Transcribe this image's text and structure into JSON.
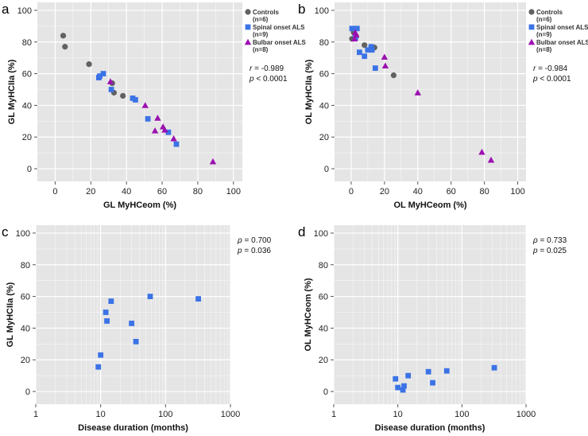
{
  "colors": {
    "controls": "#616161",
    "spinal": "#3b73e6",
    "bulbar": "#9b11b0",
    "plot_bg": "#e5e5e5",
    "grid": "#ffffff"
  },
  "chart_data": [
    {
      "panel": "a",
      "type": "scatter",
      "xlabel": "GL MyHCeom (%)",
      "ylabel": "GL MyHCIIa (%)",
      "xscale": "linear",
      "xlim": [
        -10,
        105
      ],
      "ylim": [
        -8,
        105
      ],
      "xticks": [
        0,
        20,
        40,
        60,
        80,
        100
      ],
      "xtick_labels": [
        "0",
        "20",
        "40",
        "60",
        "80",
        "100"
      ],
      "yticks": [
        0,
        20,
        40,
        60,
        80,
        100
      ],
      "ytick_labels": [
        "0",
        "20",
        "40",
        "60",
        "80",
        "100"
      ],
      "legend": [
        {
          "label": "Controls",
          "sub": "(n=6)",
          "marker": "circle",
          "group": "controls"
        },
        {
          "label": "Spinal onset ALS",
          "sub": "(n=9)",
          "marker": "square",
          "group": "spinal"
        },
        {
          "label": "Bulbar onset ALS",
          "sub": "(n=8)",
          "marker": "triangle",
          "group": "bulbar"
        }
      ],
      "stats": [
        {
          "sym": "r",
          "text": " = -0.989"
        },
        {
          "sym": "p",
          "text": " < 0.0001"
        }
      ],
      "series": [
        {
          "name": "Controls",
          "group": "controls",
          "marker": "circle",
          "points": [
            [
              4.5,
              84
            ],
            [
              5.5,
              77
            ],
            [
              19,
              66
            ],
            [
              33,
              48
            ],
            [
              38,
              46
            ],
            [
              32,
              54
            ]
          ]
        },
        {
          "name": "Spinal onset ALS",
          "group": "spinal",
          "marker": "square",
          "points": [
            [
              24.5,
              57.5
            ],
            [
              25,
              58.5
            ],
            [
              27,
              60
            ],
            [
              31.5,
              50
            ],
            [
              43.5,
              44.5
            ],
            [
              45,
              43.5
            ],
            [
              52,
              31.5
            ],
            [
              63.5,
              23
            ],
            [
              68,
              15.5
            ]
          ]
        },
        {
          "name": "Bulbar onset ALS",
          "group": "bulbar",
          "marker": "triangle",
          "points": [
            [
              31,
              55
            ],
            [
              50.5,
              40
            ],
            [
              56,
              24
            ],
            [
              57.5,
              32
            ],
            [
              60.5,
              26.5
            ],
            [
              61.5,
              24.5
            ],
            [
              66.5,
              19
            ],
            [
              88.5,
              4.5
            ]
          ]
        }
      ]
    },
    {
      "panel": "b",
      "type": "scatter",
      "xlabel": "OL MyHCeom (%)",
      "ylabel": "OL MyHCIIa (%)",
      "xscale": "linear",
      "xlim": [
        -10,
        105
      ],
      "ylim": [
        -8,
        105
      ],
      "xticks": [
        0,
        20,
        40,
        60,
        80,
        100
      ],
      "xtick_labels": [
        "0",
        "20",
        "40",
        "60",
        "80",
        "100"
      ],
      "yticks": [
        0,
        20,
        40,
        60,
        80,
        100
      ],
      "ytick_labels": [
        "0",
        "20",
        "40",
        "60",
        "80",
        "100"
      ],
      "legend": [
        {
          "label": "Controls",
          "sub": "(n=6)",
          "marker": "circle",
          "group": "controls"
        },
        {
          "label": "Spinal onset ALS",
          "sub": "(n=9)",
          "marker": "square",
          "group": "spinal"
        },
        {
          "label": "Bulbar onset ALS",
          "sub": "(n=8)",
          "marker": "triangle",
          "group": "bulbar"
        }
      ],
      "stats": [
        {
          "sym": "r",
          "text": " = -0.984"
        },
        {
          "sym": "p",
          "text": " < 0.0001"
        }
      ],
      "series": [
        {
          "name": "Controls",
          "group": "controls",
          "marker": "circle",
          "points": [
            [
              0.5,
              82
            ],
            [
              1.5,
              86
            ],
            [
              3,
              83.5
            ],
            [
              8,
              78
            ],
            [
              14,
              76.5
            ],
            [
              25.5,
              59
            ]
          ]
        },
        {
          "name": "Spinal onset ALS",
          "group": "spinal",
          "marker": "square",
          "points": [
            [
              0.5,
              88.5
            ],
            [
              3.5,
              88.5
            ],
            [
              5,
              73.5
            ],
            [
              8,
              71
            ],
            [
              10,
              75
            ],
            [
              12,
              77
            ],
            [
              12.5,
              75
            ],
            [
              14.5,
              63.5
            ],
            [
              2.5,
              82.5
            ]
          ]
        },
        {
          "name": "Bulbar onset ALS",
          "group": "bulbar",
          "marker": "triangle",
          "points": [
            [
              2,
              82
            ],
            [
              3,
              84.5
            ],
            [
              20,
              70.5
            ],
            [
              20.5,
              65
            ],
            [
              40,
              48
            ],
            [
              78.5,
              10.5
            ],
            [
              84,
              5.5
            ],
            [
              2.5,
              86
            ]
          ]
        }
      ]
    },
    {
      "panel": "c",
      "type": "scatter",
      "xlabel": "Disease duration (months)",
      "ylabel": "GL MyHCIIa (%)",
      "xscale": "log",
      "xlim": [
        1,
        1000
      ],
      "ylim": [
        -8,
        105
      ],
      "xticks": [
        1,
        10,
        100,
        1000
      ],
      "xtick_labels": [
        "1",
        "10",
        "100",
        "1000"
      ],
      "yticks": [
        0,
        20,
        40,
        60,
        80,
        100
      ],
      "ytick_labels": [
        "0",
        "20",
        "40",
        "60",
        "80",
        "100"
      ],
      "legend": [],
      "stats": [
        {
          "sym": "ρ",
          "text": " = 0.700"
        },
        {
          "sym": "p",
          "text": " = 0.036"
        }
      ],
      "series": [
        {
          "name": "Spinal onset ALS",
          "group": "spinal",
          "marker": "square",
          "points": [
            [
              9.2,
              15.5
            ],
            [
              10,
              23
            ],
            [
              12,
              50
            ],
            [
              12.5,
              44.5
            ],
            [
              14.5,
              57
            ],
            [
              30,
              43
            ],
            [
              35,
              31.5
            ],
            [
              58,
              60
            ],
            [
              320,
              58.5
            ]
          ]
        }
      ]
    },
    {
      "panel": "d",
      "type": "scatter",
      "xlabel": "Disease duration (months)",
      "ylabel": "OL MyHCeom (%)",
      "xscale": "log",
      "xlim": [
        1,
        1000
      ],
      "ylim": [
        -8,
        105
      ],
      "xticks": [
        1,
        10,
        100,
        1000
      ],
      "xtick_labels": [
        "1",
        "10",
        "100",
        "1000"
      ],
      "yticks": [
        0,
        20,
        40,
        60,
        80,
        100
      ],
      "ytick_labels": [
        "0",
        "20",
        "40",
        "60",
        "80",
        "100"
      ],
      "legend": [],
      "stats": [
        {
          "sym": "ρ",
          "text": " = 0.733"
        },
        {
          "sym": "p",
          "text": " = 0.025"
        }
      ],
      "series": [
        {
          "name": "Spinal onset ALS",
          "group": "spinal",
          "marker": "square",
          "points": [
            [
              9.2,
              8
            ],
            [
              10,
              2.5
            ],
            [
              12,
              1
            ],
            [
              12.5,
              3.5
            ],
            [
              14.5,
              10
            ],
            [
              30,
              12.5
            ],
            [
              35,
              5.5
            ],
            [
              58,
              13
            ],
            [
              320,
              15
            ]
          ]
        }
      ]
    }
  ]
}
